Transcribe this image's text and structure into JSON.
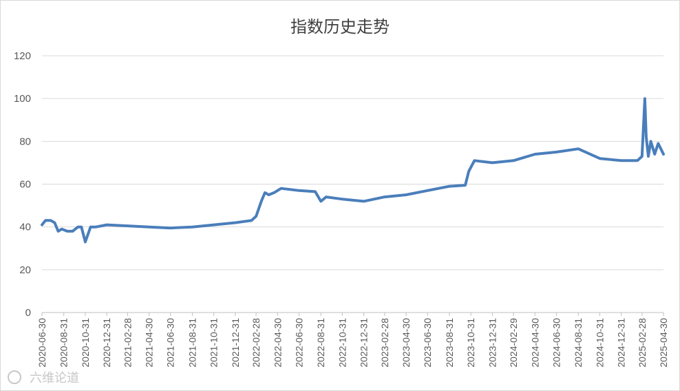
{
  "chart_data": {
    "type": "line",
    "title": "指数历史走势",
    "xlabel": "",
    "ylabel": "",
    "ylim": [
      0,
      120
    ],
    "yticks": [
      0,
      20,
      40,
      60,
      80,
      100,
      120
    ],
    "x_ticks": [
      "2020-06-30",
      "2020-08-31",
      "2020-10-31",
      "2020-12-31",
      "2021-02-28",
      "2021-04-30",
      "2021-06-30",
      "2021-08-31",
      "2021-10-31",
      "2021-12-31",
      "2022-02-28",
      "2022-04-30",
      "2022-06-30",
      "2022-08-31",
      "2022-10-31",
      "2022-12-31",
      "2023-02-28",
      "2023-04-30",
      "2023-06-30",
      "2023-08-31",
      "2023-10-31",
      "2023-12-31",
      "2024-02-29",
      "2024-04-30",
      "2024-06-30",
      "2024-08-31",
      "2024-10-31",
      "2024-12-31",
      "2025-02-28",
      "2025-04-30"
    ],
    "grid": true,
    "legend": "none",
    "series_color": "#4a7ebb",
    "series": [
      {
        "x": [
          "2020-06-30",
          "2020-07-10",
          "2020-07-25",
          "2020-08-05",
          "2020-08-15",
          "2020-08-25",
          "2020-09-10",
          "2020-09-25",
          "2020-10-10",
          "2020-10-20",
          "2020-10-31",
          "2020-11-15",
          "2020-11-30",
          "2020-12-31",
          "2021-02-28",
          "2021-04-30",
          "2021-06-30",
          "2021-08-31",
          "2021-10-31",
          "2021-12-31",
          "2022-02-15",
          "2022-02-28",
          "2022-03-15",
          "2022-03-25",
          "2022-04-05",
          "2022-04-20",
          "2022-05-10",
          "2022-06-30",
          "2022-08-15",
          "2022-08-31",
          "2022-09-15",
          "2022-10-31",
          "2022-12-31",
          "2023-02-28",
          "2023-04-30",
          "2023-06-30",
          "2023-08-31",
          "2023-10-15",
          "2023-10-25",
          "2023-11-10",
          "2023-12-31",
          "2024-02-29",
          "2024-04-30",
          "2024-06-30",
          "2024-08-31",
          "2024-10-31",
          "2024-12-31",
          "2025-02-15",
          "2025-02-28",
          "2025-03-08",
          "2025-03-12",
          "2025-03-18",
          "2025-03-25",
          "2025-04-05",
          "2025-04-15",
          "2025-04-30"
        ],
        "values": [
          41,
          43,
          43,
          42,
          38,
          39,
          38,
          38,
          40,
          40,
          33,
          40,
          40,
          41,
          40.5,
          40,
          39.5,
          40,
          41,
          42,
          43,
          45,
          52,
          56,
          55,
          56,
          58,
          57,
          56.5,
          52,
          54,
          53,
          52,
          54,
          55,
          57,
          59,
          59.5,
          66,
          71,
          70,
          71,
          74,
          75,
          76.5,
          72,
          71,
          71,
          73,
          100,
          82,
          73,
          80,
          74,
          79,
          74
        ]
      }
    ]
  },
  "watermark": "六维论道"
}
